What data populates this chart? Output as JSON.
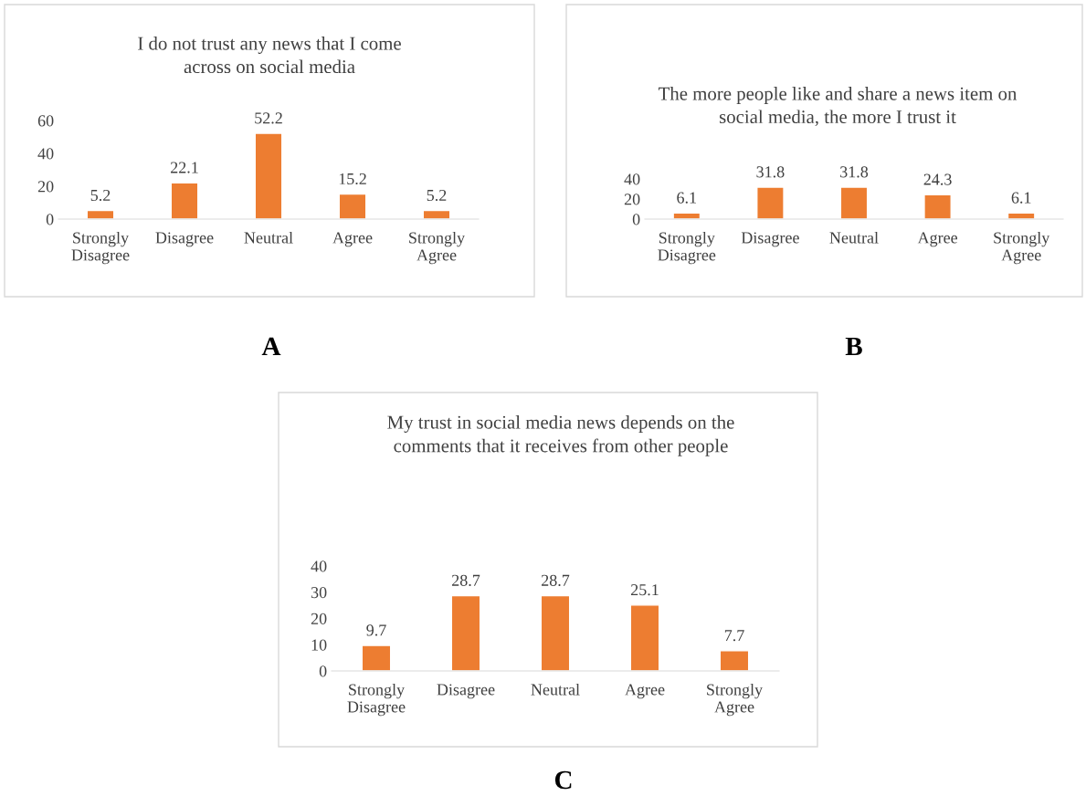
{
  "chart_data": [
    {
      "type": "bar",
      "title": "I do not trust any news that I come across on social media",
      "categories": [
        "Strongly Disagree",
        "Disagree",
        "Neutral",
        "Agree",
        "Strongly Agree"
      ],
      "values": [
        5.2,
        22.1,
        52.2,
        15.2,
        5.2
      ],
      "color": "#ed7d31",
      "ylim": [
        0,
        60
      ],
      "yticks": [
        0,
        20,
        40,
        60
      ],
      "data_labels": true,
      "grid": false,
      "legend": false,
      "annotations": [
        "A"
      ]
    },
    {
      "type": "bar",
      "title": "The more people like and share a news item on social media, the more I trust it",
      "categories": [
        "Strongly Disagree",
        "Disagree",
        "Neutral",
        "Agree",
        "Strongly Agree"
      ],
      "values": [
        6.1,
        31.8,
        31.8,
        24.3,
        6.1
      ],
      "color": "#ed7d31",
      "ylim": [
        0,
        40
      ],
      "yticks": [
        0,
        20,
        40
      ],
      "data_labels": true,
      "grid": false,
      "legend": false,
      "annotations": [
        "B"
      ]
    },
    {
      "type": "bar",
      "title": "My trust in social media news depends on the comments that it receives from other people",
      "categories": [
        "Strongly Disagree",
        "Disagree",
        "Neutral",
        "Agree",
        "Strongly Agree"
      ],
      "values": [
        9.7,
        28.7,
        28.7,
        25.1,
        7.7
      ],
      "color": "#ed7d31",
      "ylim": [
        0,
        40
      ],
      "yticks": [
        0,
        10,
        20,
        30,
        40
      ],
      "data_labels": true,
      "grid": false,
      "legend": false,
      "annotations": [
        "C"
      ]
    }
  ]
}
